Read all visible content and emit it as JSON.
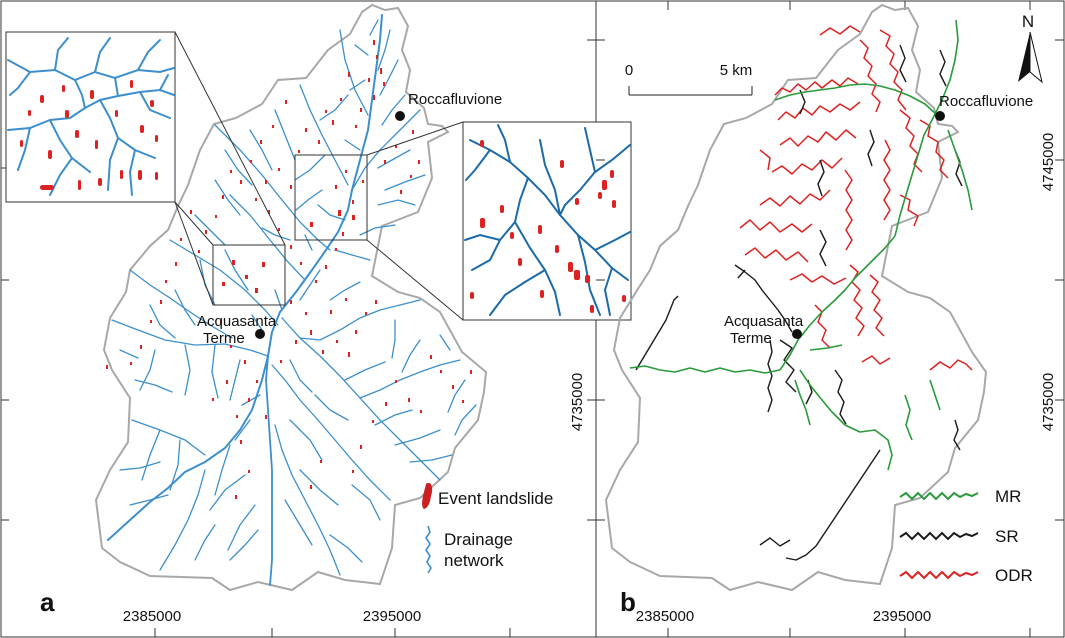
{
  "panel_a": {
    "letter": "a",
    "x_ticks": [
      "2385000",
      "2395000"
    ],
    "y_tick": "4735000",
    "towns": [
      {
        "name": "Roccafluvione"
      },
      {
        "name_line1": "Acquasanta",
        "name_line2": "Terme"
      }
    ],
    "legend": {
      "landslide_label": "Event landslide",
      "drainage_label_line1": "Drainage",
      "drainage_label_line2": "network"
    },
    "colors": {
      "landslide": "#dd2222",
      "drainage": "#3c8fcc",
      "boundary": "#a8a8a8"
    }
  },
  "panel_b": {
    "letter": "b",
    "x_ticks": [
      "2385000",
      "2395000"
    ],
    "y_ticks": [
      "4745000",
      "4735000"
    ],
    "scale_bar": {
      "start": "0",
      "end": "5 km"
    },
    "north_label": "N",
    "towns": [
      {
        "name": "Roccafluvione"
      },
      {
        "name_line1": "Acquasanta",
        "name_line2": "Terme"
      }
    ],
    "legend": [
      {
        "label": "MR",
        "color": "#2a9a3a"
      },
      {
        "label": "SR",
        "color": "#1a1a1a"
      },
      {
        "label": "ODR",
        "color": "#dd2020"
      }
    ]
  }
}
